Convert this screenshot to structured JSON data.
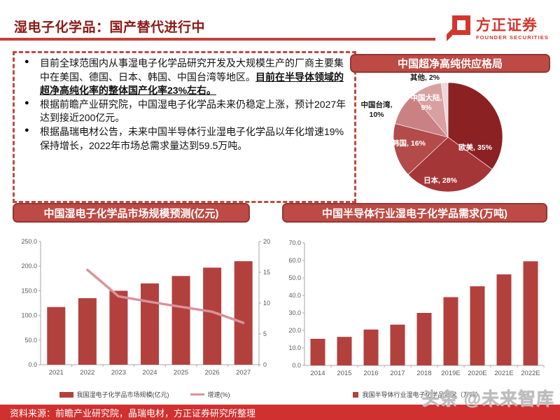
{
  "page": {
    "title": "湿电子化学品：国产替代进行中",
    "logo": {
      "name": "方正证券",
      "subtitle": "FOUNDER SECURITIES"
    },
    "footer": {
      "source": "资料来源：前瞻产业研究院，晶瑞电材，方正证券研究所整理"
    },
    "watermark": "头条 @未来智库"
  },
  "colors": {
    "accent_dark_red": "#8a1a18",
    "panel_fill": "#bd4a44",
    "panel_border": "#953735",
    "bar": "#b2413e",
    "line": "#d9939a",
    "footer": "#d03030",
    "logo_red": "#d2372e"
  },
  "bullets": {
    "items": [
      {
        "text": "目前全球范围内从事湿电子化学品研究开发及大规模生产的厂商主要集中在美国、德国、日本、韩国、中国台湾等地区。",
        "emphasis": "目前在半导体领域的超净高纯化率的整体国产化率23%左右。"
      },
      {
        "text": "根据前瞻产业研究院，中国湿电子化学品未来仍稳定上涨，预计2027年达到接近200亿元。",
        "emphasis": ""
      },
      {
        "text": "根据晶瑞电材公告，未来中国半导体行业湿电子化学品以年化增速19%保持增长，2022年市场总需求量达到59.5万吨。",
        "emphasis": ""
      }
    ]
  },
  "chart_data": [
    {
      "id": "supply_pie",
      "type": "pie",
      "title": "中国超净高纯供应格局",
      "legend_position": "none",
      "slices": [
        {
          "label": "欧美",
          "value": 35,
          "color": "#8c2124",
          "label_lines": [
            "欧美, 35%"
          ],
          "label_pos": "inside",
          "label_color": "#ffffff"
        },
        {
          "label": "日本",
          "value": 28,
          "color": "#a53638",
          "label_lines": [
            "日本, 28%"
          ],
          "label_pos": "inside",
          "label_color": "#ffffff"
        },
        {
          "label": "韩国",
          "value": 16,
          "color": "#b34b4b",
          "label_lines": [
            "韩国, 16%"
          ],
          "label_pos": "inside",
          "label_color": "#ffffff"
        },
        {
          "label": "中国台湾",
          "value": 10,
          "color": "#ca8183",
          "label_lines": [
            "中国台湾,",
            "10%"
          ],
          "label_pos": "outside",
          "label_color": "#1a1a1a"
        },
        {
          "label": "中国大陆",
          "value": 9,
          "color": "#d9a0a1",
          "label_lines": [
            "中国大陆,",
            "9%"
          ],
          "label_pos": "inside",
          "label_color": "#ffffff"
        },
        {
          "label": "其他",
          "value": 2,
          "color": "#ecd8d8",
          "label_lines": [
            "其他, 2%"
          ],
          "label_pos": "outside",
          "label_color": "#1a1a1a"
        }
      ]
    },
    {
      "id": "market_forecast",
      "type": "bar",
      "title": "中国湿电子化学品市场规模预测(亿元)",
      "categories": [
        "2021",
        "2022",
        "2023",
        "2024",
        "2025",
        "2026",
        "2027"
      ],
      "series": [
        {
          "name": "我国湿电子化学品市场规模(亿元)",
          "type": "bar",
          "axis": "left",
          "color": "#b2413e",
          "values": [
            117,
            135,
            150,
            165,
            180,
            197,
            210
          ]
        },
        {
          "name": "增速(%)",
          "type": "line",
          "axis": "right",
          "color": "#d9939a",
          "values": [
            null,
            15.4,
            11.1,
            10.2,
            9.4,
            8.6,
            6.8
          ]
        }
      ],
      "left_axis": {
        "min": 0,
        "max": 250,
        "step": 50,
        "decimals": 1
      },
      "right_axis": {
        "min": 0,
        "max": 20,
        "step": 5,
        "decimals": 0
      },
      "grid": false,
      "legend_position": "bottom"
    },
    {
      "id": "semi_demand",
      "type": "bar",
      "title": "中国半导体行业湿电子化学品需求(万吨)",
      "categories": [
        "2014",
        "2015",
        "2016",
        "2017",
        "2018",
        "2019E",
        "2020E",
        "2021E",
        "2022E"
      ],
      "series": [
        {
          "name": "我国半导体行业湿电子化学品需求（万吨）",
          "type": "bar",
          "axis": "left",
          "color": "#b2413e",
          "values": [
            15.2,
            16.3,
            20.5,
            23.3,
            30.0,
            39.0,
            45.2,
            52.0,
            59.5
          ]
        }
      ],
      "left_axis": {
        "min": 0,
        "max": 70,
        "step": 10,
        "decimals": 1
      },
      "grid": false,
      "legend": "我国半导体行业湿电子化学品需求（万吨）",
      "legend_position": "bottom"
    }
  ]
}
